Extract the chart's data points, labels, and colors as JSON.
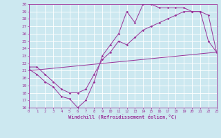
{
  "xlabel": "Windchill (Refroidissement éolien,°C)",
  "bg_color": "#cce8f0",
  "line_color": "#993399",
  "grid_color": "#ffffff",
  "ylim": [
    16,
    30
  ],
  "xlim": [
    0,
    23
  ],
  "yticks": [
    16,
    17,
    18,
    19,
    20,
    21,
    22,
    23,
    24,
    25,
    26,
    27,
    28,
    29,
    30
  ],
  "xticks": [
    0,
    1,
    2,
    3,
    4,
    5,
    6,
    7,
    8,
    9,
    10,
    11,
    12,
    13,
    14,
    15,
    16,
    17,
    18,
    19,
    20,
    21,
    22,
    23
  ],
  "line1_x": [
    0,
    1,
    2,
    3,
    4,
    5,
    6,
    7,
    8,
    9,
    10,
    11,
    12,
    13,
    14,
    15,
    16,
    17,
    18,
    19,
    20,
    21,
    22,
    23
  ],
  "line1_y": [
    21.2,
    20.5,
    19.5,
    18.8,
    17.5,
    17.2,
    16.0,
    17.0,
    19.5,
    23.0,
    24.5,
    26.0,
    29.0,
    27.5,
    30.0,
    30.0,
    29.5,
    29.5,
    29.5,
    29.5,
    29.0,
    29.0,
    25.0,
    23.5
  ],
  "line2_x": [
    0,
    1,
    2,
    3,
    4,
    5,
    6,
    7,
    8,
    9,
    10,
    11,
    12,
    13,
    14,
    15,
    16,
    17,
    18,
    19,
    20,
    21,
    22,
    23
  ],
  "line2_y": [
    21.5,
    21.5,
    20.5,
    19.5,
    18.5,
    18.0,
    18.0,
    18.5,
    20.5,
    22.5,
    23.5,
    25.0,
    24.5,
    25.5,
    26.5,
    27.0,
    27.5,
    28.0,
    28.5,
    29.0,
    29.0,
    29.0,
    28.5,
    23.5
  ],
  "line3_x": [
    0,
    23
  ],
  "line3_y": [
    21.0,
    23.5
  ]
}
